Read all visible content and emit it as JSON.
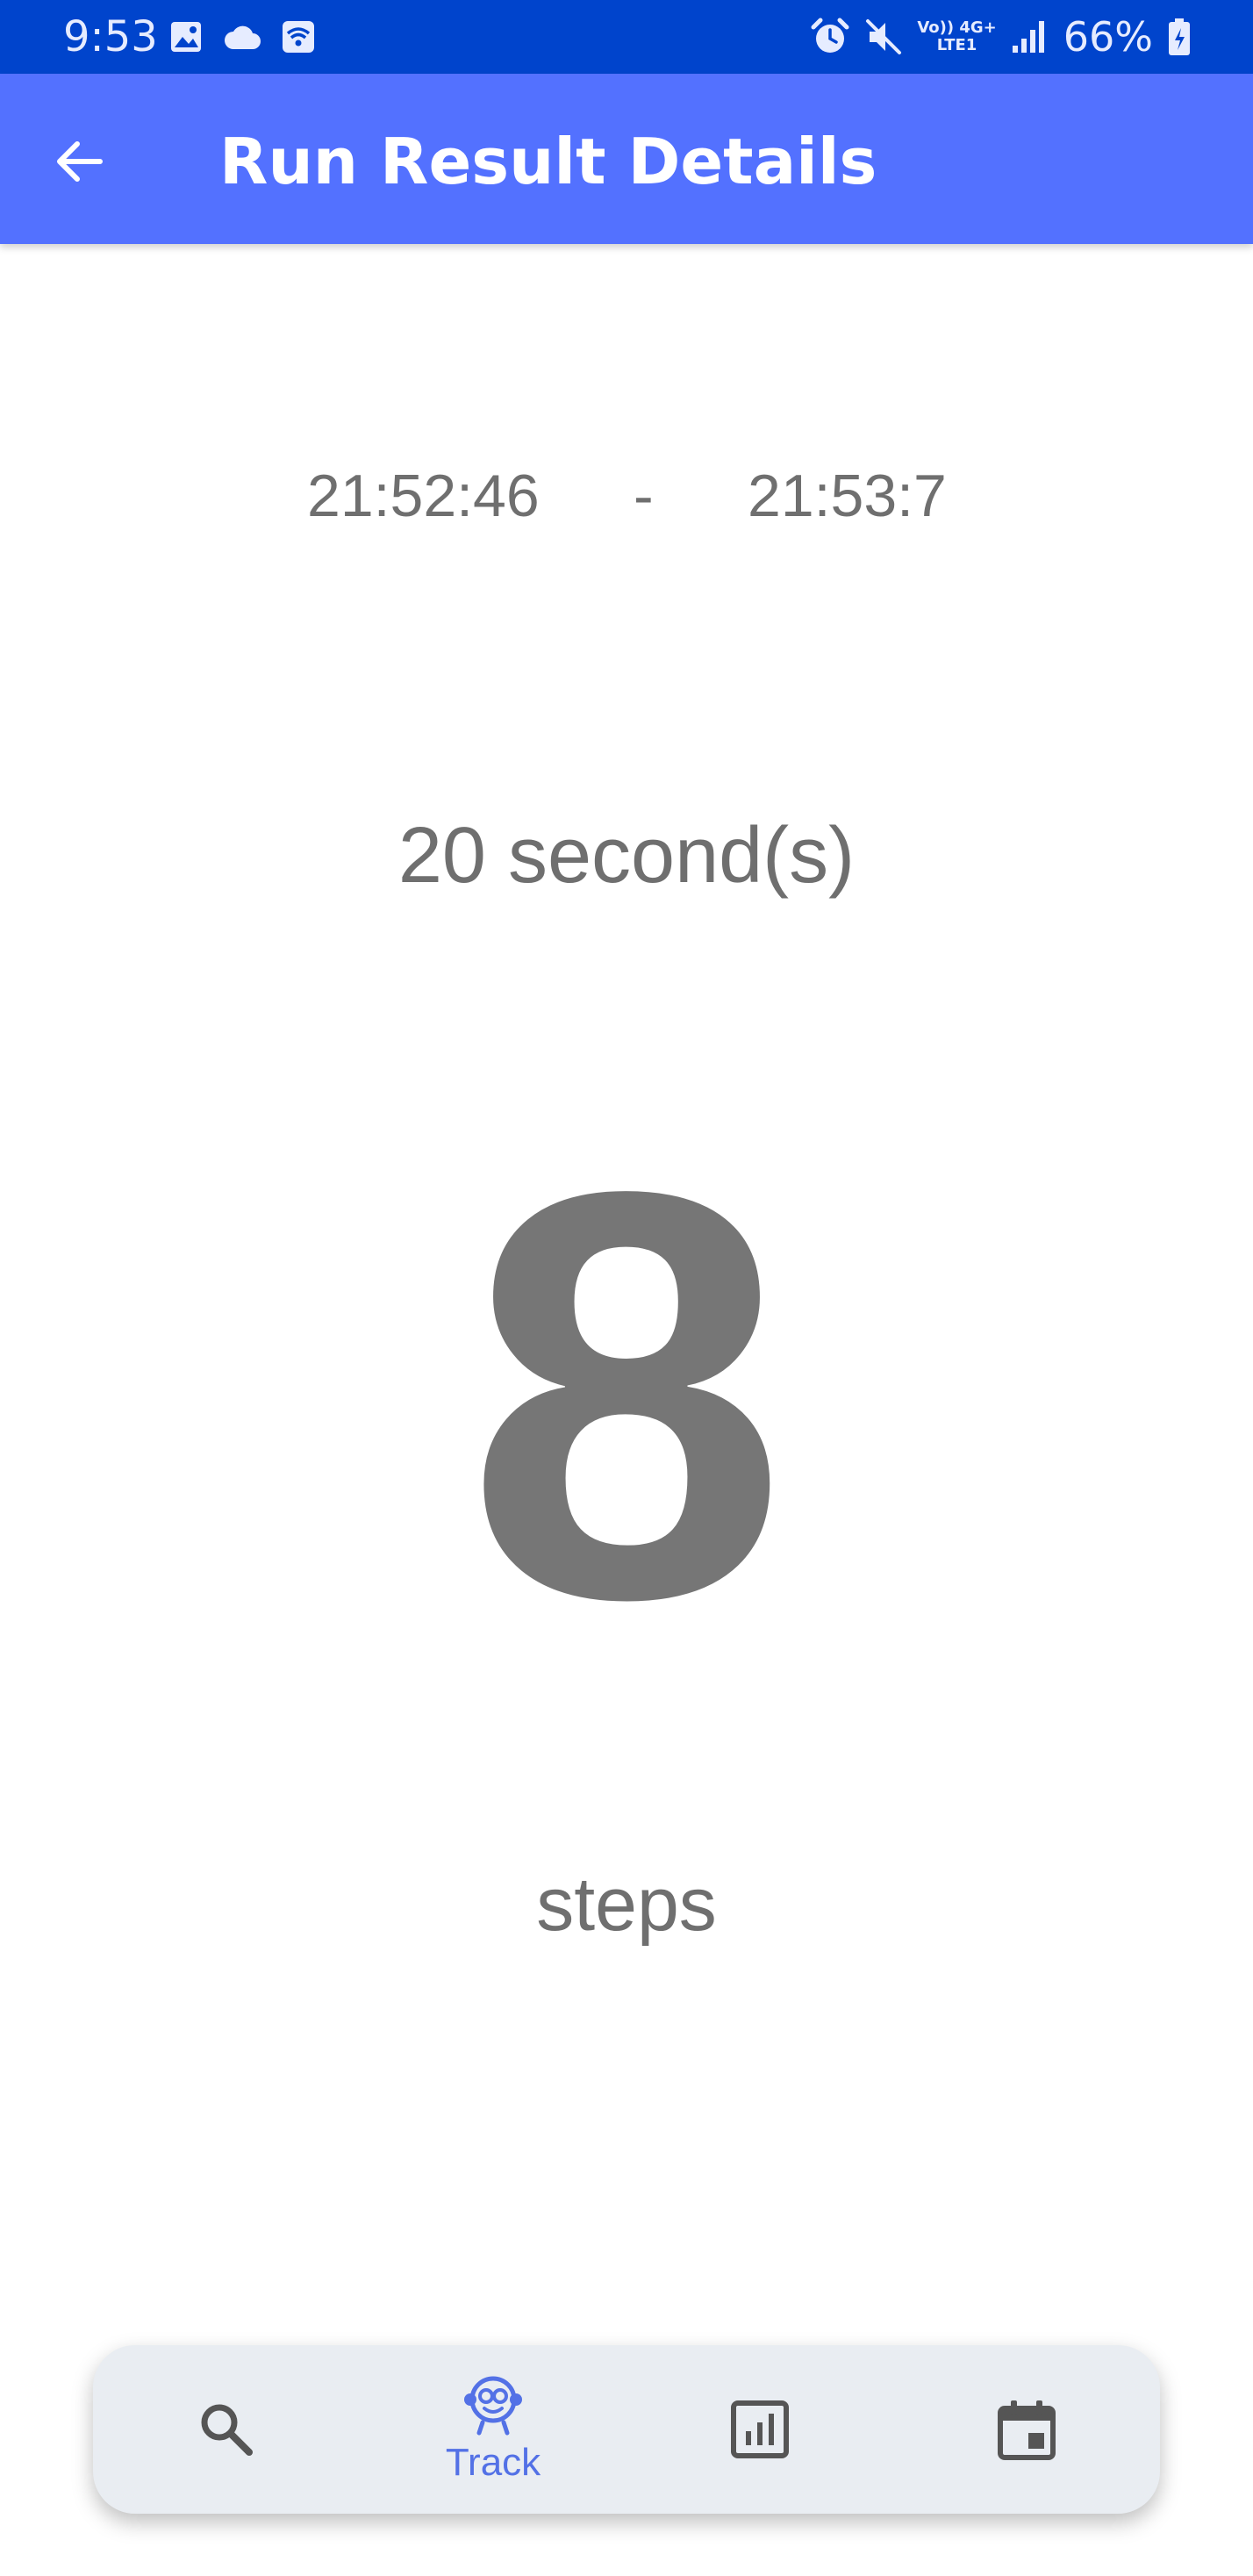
{
  "status_bar": {
    "time": "9:53",
    "battery_text": "66%",
    "network_top": "Vo)) 4G+",
    "network_bottom": "LTE1",
    "left_icons": [
      "image-icon",
      "cloud-icon",
      "wifi-calling-icon"
    ],
    "right_icons": [
      "alarm-icon",
      "mute-icon",
      "signal-icon",
      "battery-icon"
    ],
    "color": "#0044cc"
  },
  "app_bar": {
    "title": "Run Result Details",
    "back_icon": "arrow-left-icon",
    "color": "#5371ff"
  },
  "result": {
    "start_time": "21:52:46",
    "separator": "-",
    "end_time": "21:53:7",
    "duration": "20 second(s)",
    "step_count": "8",
    "steps_label": "steps"
  },
  "bottom_nav": {
    "items": [
      {
        "icon": "search-icon",
        "label": ""
      },
      {
        "icon": "monkey-track-icon",
        "label": "Track",
        "active": true
      },
      {
        "icon": "bar-chart-icon",
        "label": ""
      },
      {
        "icon": "calendar-icon",
        "label": ""
      }
    ],
    "active_color": "#5371e6",
    "inactive_color": "#555555"
  }
}
